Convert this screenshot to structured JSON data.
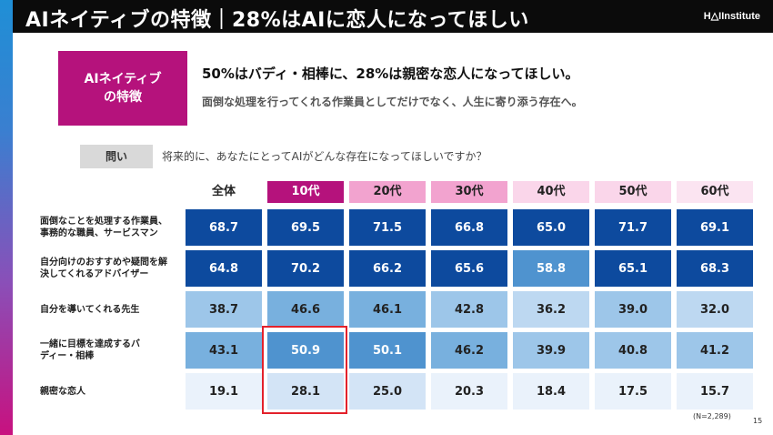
{
  "header": {
    "title": "AIネイティブの特徴｜28%はAIに恋人になってほしい",
    "logo": "H△IInstitute"
  },
  "badge": {
    "line1": "AIネイティブ",
    "line2": "の特徴"
  },
  "headline": "50%はバディ・相棒に、28%は親密な恋人になってほしい。",
  "subline": "面倒な処理を行ってくれる作業員としてだけでなく、人生に寄り添う存在へ。",
  "question": {
    "label": "問い",
    "text": "将来的に、あなたにとってAIがどんな存在になってほしいですか？"
  },
  "colors": {
    "accent": "#b5127c",
    "highlight": "#e3212b"
  },
  "chart_data": {
    "type": "table",
    "columns": [
      "全体",
      "10代",
      "20代",
      "30代",
      "40代",
      "50代",
      "60代"
    ],
    "rows": [
      {
        "label": [
          "面倒なことを処理する作業員、",
          "事務的な職員、サービスマン"
        ],
        "values": [
          "68.7",
          "69.5",
          "71.5",
          "66.8",
          "65.0",
          "71.7",
          "69.1"
        ]
      },
      {
        "label": [
          "自分向けのおすすめや疑問を解",
          "決してくれるアドバイザー"
        ],
        "values": [
          "64.8",
          "70.2",
          "66.2",
          "65.6",
          "58.8",
          "65.1",
          "68.3"
        ]
      },
      {
        "label": [
          "自分を導いてくれる先生"
        ],
        "values": [
          "38.7",
          "46.6",
          "46.1",
          "42.8",
          "36.2",
          "39.0",
          "32.0"
        ]
      },
      {
        "label": [
          "一緒に目標を達成するバ",
          "ディー・相棒"
        ],
        "values": [
          "43.1",
          "50.9",
          "50.1",
          "46.2",
          "39.9",
          "40.8",
          "41.2"
        ]
      },
      {
        "label": [
          "親密な恋人"
        ],
        "values": [
          "19.1",
          "28.1",
          "25.0",
          "20.3",
          "18.4",
          "17.5",
          "15.7"
        ]
      }
    ]
  },
  "note": "(N=2,289)",
  "page_number": "15"
}
